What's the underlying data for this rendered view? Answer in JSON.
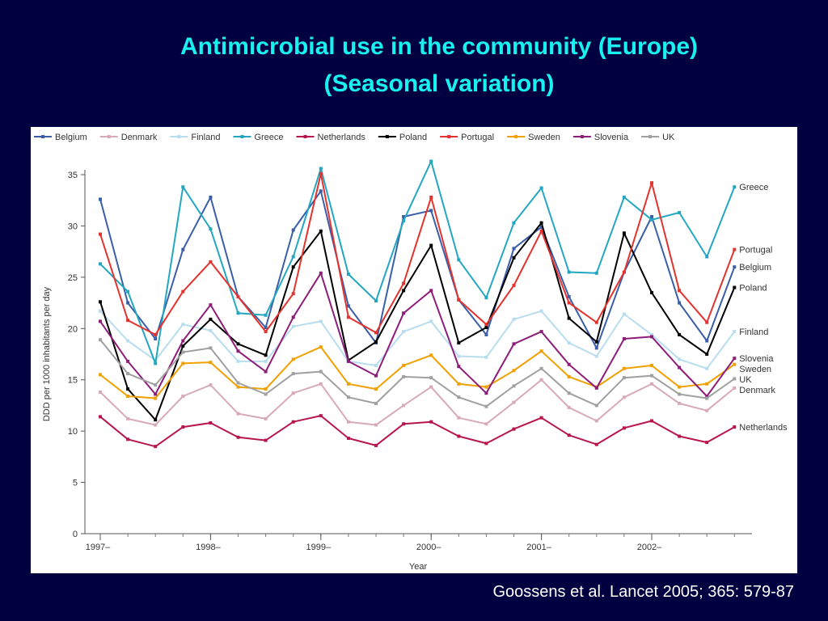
{
  "slide": {
    "title_line1": "Antimicrobial use in the community (Europe)",
    "title_line2": "(Seasonal variation)",
    "citation": "Goossens et al. Lancet 2005; 365: 579-87"
  },
  "chart_data": {
    "type": "line",
    "ylabel": "DDD per 1000 inhabitants per day",
    "xlabel": "Year",
    "ylim": [
      0,
      35
    ],
    "yticks": [
      0,
      5,
      10,
      15,
      20,
      25,
      30,
      35
    ],
    "xticks": [
      {
        "label": "1997–",
        "pos": 0
      },
      {
        "label": "1998–",
        "pos": 4
      },
      {
        "label": "1999–",
        "pos": 8
      },
      {
        "label": "2000–",
        "pos": 12
      },
      {
        "label": "2001–",
        "pos": 16
      },
      {
        "label": "2002–",
        "pos": 20
      }
    ],
    "x": [
      0,
      1,
      2,
      3,
      4,
      5,
      6,
      7,
      8,
      9,
      10,
      11,
      12,
      13,
      14,
      15,
      16,
      17,
      18,
      19,
      20,
      21,
      22,
      23
    ],
    "legend_position": "top",
    "grid": false,
    "series": [
      {
        "name": "Belgium",
        "color": "#3a5ea8",
        "end_label": "Belgium",
        "values": [
          32.6,
          22.5,
          19,
          27.7,
          32.8,
          23.1,
          20.1,
          29.6,
          33.4,
          22.2,
          18.6,
          30.9,
          31.5,
          22.8,
          19.4,
          27.8,
          29.9,
          23.1,
          18.1,
          25.5,
          30.9,
          22.5,
          18.8,
          26
        ]
      },
      {
        "name": "Denmark",
        "color": "#d8aab9",
        "end_label": "Denmark",
        "values": [
          13.8,
          11.2,
          10.6,
          13.4,
          14.5,
          11.7,
          11.2,
          13.7,
          14.6,
          10.9,
          10.6,
          12.5,
          14.3,
          11.3,
          10.7,
          12.8,
          15,
          12.3,
          11,
          13.3,
          14.6,
          12.7,
          12,
          14.2
        ]
      },
      {
        "name": "Finland",
        "color": "#b8ddee",
        "end_label": "Finland",
        "values": [
          21.7,
          18.8,
          16.9,
          20.4,
          19.8,
          16.8,
          16.8,
          20.2,
          20.7,
          16.8,
          16.4,
          19.7,
          20.7,
          17.3,
          17.2,
          20.9,
          21.7,
          18.6,
          17.3,
          21.4,
          19.4,
          17,
          16.1,
          19.7
        ]
      },
      {
        "name": "Greece",
        "color": "#23a7c0",
        "end_label": "Greece",
        "values": [
          26.3,
          23.6,
          16.6,
          33.8,
          29.7,
          21.5,
          21.3,
          27,
          35.6,
          25.3,
          22.7,
          30.5,
          36.3,
          26.7,
          23,
          30.3,
          33.7,
          25.5,
          25.4,
          32.8,
          30.6,
          31.3,
          27,
          33.8
        ]
      },
      {
        "name": "Netherlands",
        "color": "#b8154c",
        "end_label": "Netherlands",
        "values": [
          11.4,
          9.2,
          8.5,
          10.4,
          10.8,
          9.4,
          9.1,
          10.9,
          11.5,
          9.3,
          8.6,
          10.7,
          10.9,
          9.5,
          8.8,
          10.2,
          11.3,
          9.6,
          8.7,
          10.3,
          11,
          9.5,
          8.9,
          10.4
        ]
      },
      {
        "name": "Poland",
        "color": "#000000",
        "end_label": "Poland",
        "values": [
          22.6,
          14.1,
          11.1,
          18.3,
          20.9,
          18.5,
          17.4,
          26,
          29.5,
          16.9,
          18.7,
          23.7,
          28.1,
          18.6,
          20.1,
          26.9,
          30.3,
          21,
          18.7,
          29.3,
          23.5,
          19.4,
          17.5,
          24
        ]
      },
      {
        "name": "Portugal",
        "color": "#e4322e",
        "end_label": "Portugal",
        "values": [
          29.2,
          20.8,
          19.4,
          23.6,
          26.5,
          23.1,
          19.7,
          23.4,
          35.1,
          21.1,
          19.6,
          24.4,
          32.8,
          22.8,
          20.4,
          24.2,
          29.5,
          22.5,
          20.6,
          25.5,
          34.2,
          23.7,
          20.6,
          27.7
        ]
      },
      {
        "name": "Sweden",
        "color": "#f0a000",
        "end_label": "Sweden",
        "values": [
          15.5,
          13.4,
          13.2,
          16.6,
          16.7,
          14.3,
          14.1,
          17,
          18.2,
          14.6,
          14.1,
          16.4,
          17.4,
          14.6,
          14.3,
          15.9,
          17.8,
          15.3,
          14.3,
          16.1,
          16.4,
          14.3,
          14.6,
          16.5
        ]
      },
      {
        "name": "Slovenia",
        "color": "#8e1d7a",
        "end_label": "Slovenia",
        "values": [
          20.7,
          16.8,
          13.6,
          18.8,
          22.3,
          17.8,
          15.8,
          21.1,
          25.4,
          16.8,
          15.4,
          21.5,
          23.7,
          16.3,
          13.7,
          18.5,
          19.7,
          16.5,
          14.2,
          19,
          19.2,
          16.2,
          13.4,
          17.1
        ]
      },
      {
        "name": "UK",
        "color": "#a0a0a0",
        "end_label": "UK",
        "values": [
          18.9,
          15.6,
          14.5,
          17.7,
          18.1,
          14.7,
          13.6,
          15.6,
          15.8,
          13.3,
          12.7,
          15.3,
          15.2,
          13.3,
          12.4,
          14.4,
          16.1,
          13.7,
          12.5,
          15.2,
          15.4,
          13.6,
          13.2,
          15.1
        ]
      }
    ]
  }
}
